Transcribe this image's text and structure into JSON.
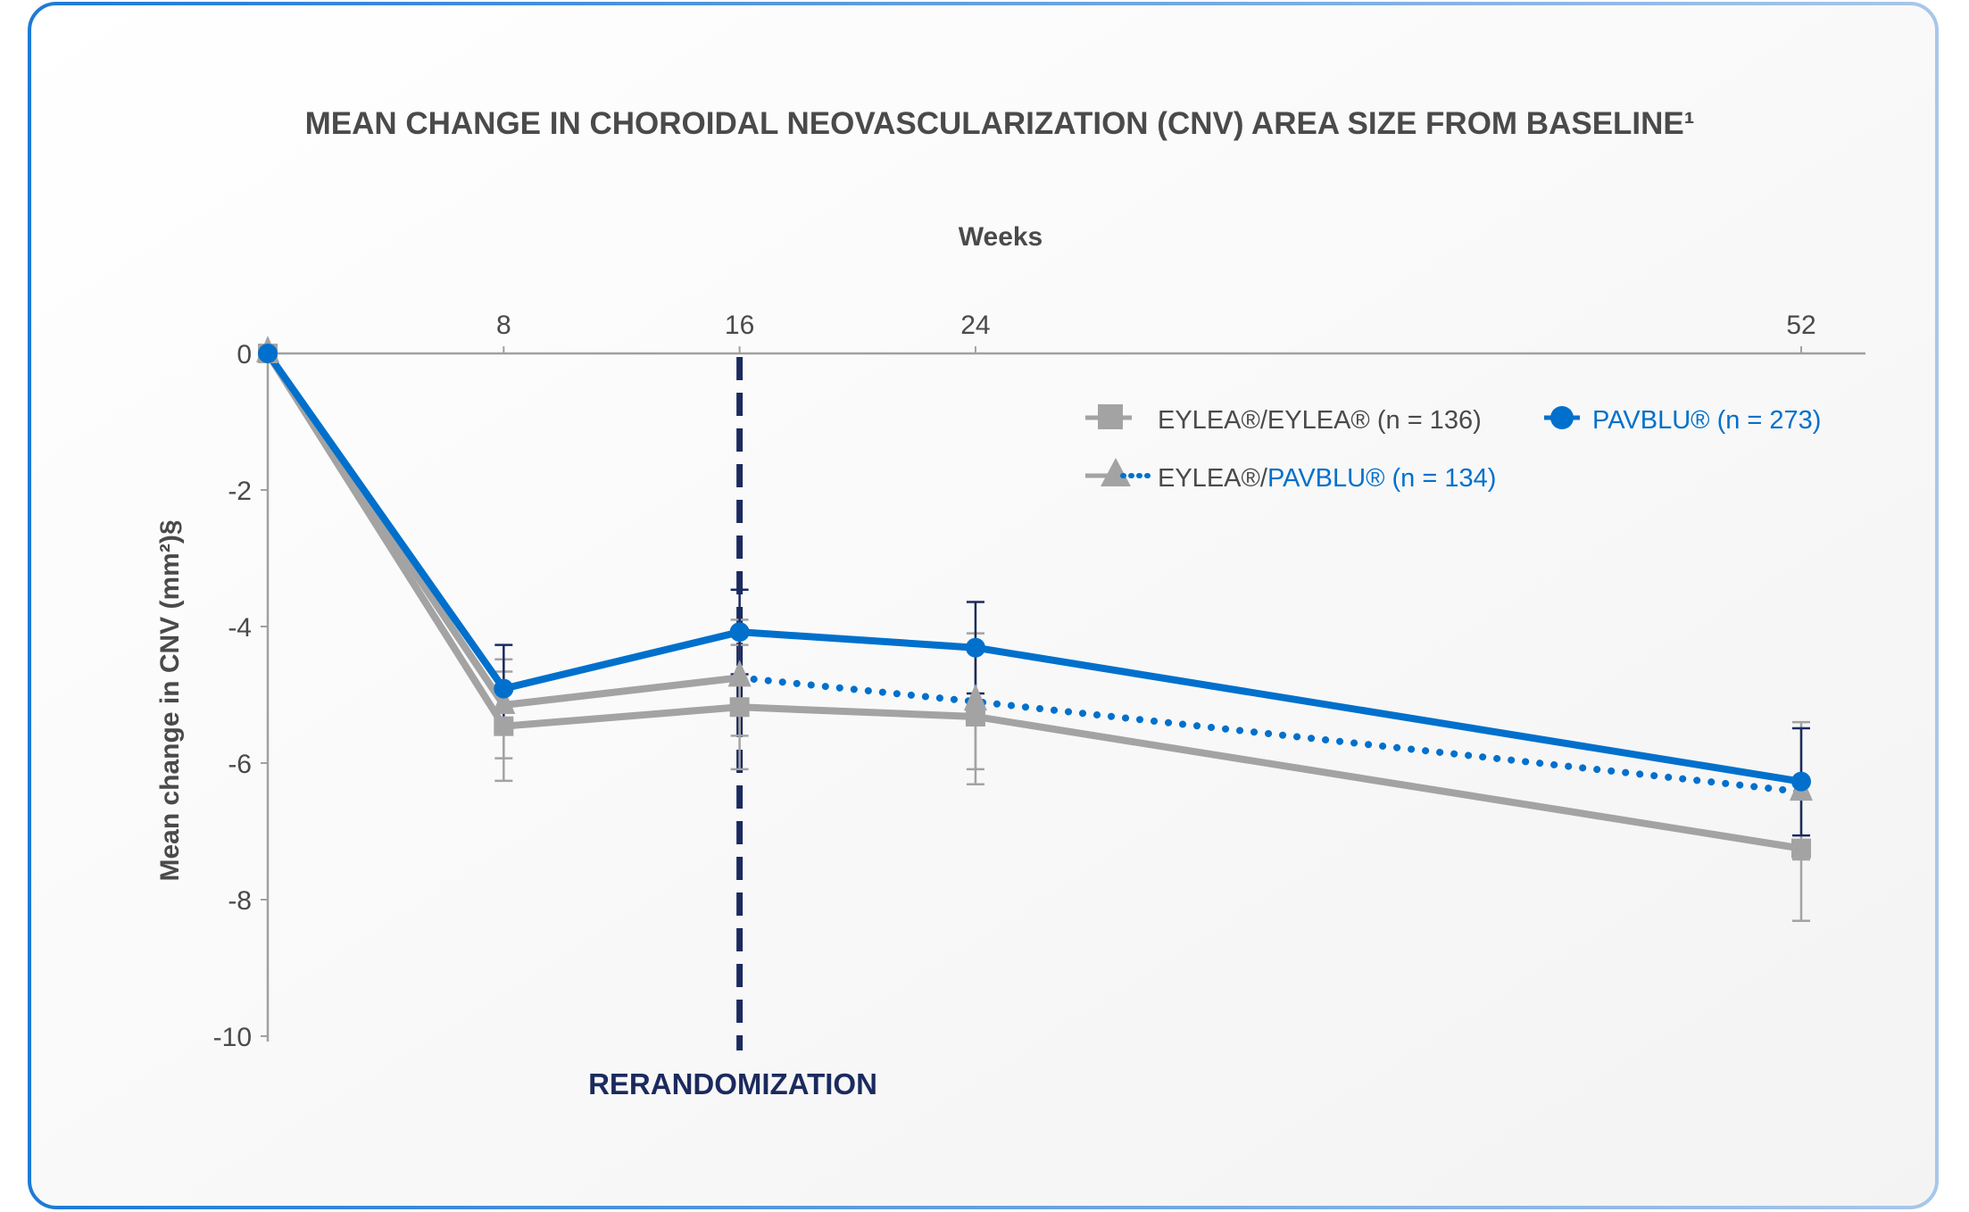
{
  "colors": {
    "pavblu": "#0070cc",
    "eylea": "#a3a3a3",
    "rerandomization": "#1b2a5e",
    "text": "#4a4a4a",
    "axis": "#a0a0a0",
    "border": "#1f7ad6"
  },
  "chart_data": {
    "type": "line",
    "title": "MEAN CHANGE IN CHOROIDAL NEOVASCULARIZATION (CNV) AREA SIZE FROM BASELINE¹",
    "xlabel": "Weeks",
    "ylabel": "Mean change in CNV (mm²)§",
    "x": [
      0,
      8,
      16,
      24,
      52
    ],
    "xticks": [
      "8",
      "16",
      "24",
      "52"
    ],
    "xtick_values": [
      8,
      16,
      24,
      52
    ],
    "xlim": [
      0,
      56
    ],
    "ylim": [
      -10,
      0
    ],
    "yticks": [
      "0",
      "-2",
      "-4",
      "-6",
      "-8",
      "-10"
    ],
    "ytick_values": [
      0,
      -2,
      -4,
      -6,
      -8,
      -10
    ],
    "grid": false,
    "legend_placement": "top-right",
    "annotation": {
      "label": "RERANDOMIZATION",
      "x": 16
    },
    "series": [
      {
        "name": "EYLEA®/EYLEA® (n = 136)",
        "legend_parts": [
          "EYLEA®/EYLEA® (n = 136)"
        ],
        "marker": "square",
        "style": "solid",
        "color": "#a3a3a3",
        "values": [
          0,
          -5.46,
          -5.18,
          -5.32,
          -7.25
        ],
        "error_low": [
          null,
          -6.26,
          -6.09,
          -6.31,
          -8.31
        ],
        "error_high": [
          null,
          -4.66,
          -4.27,
          -4.33,
          -7.41
        ]
      },
      {
        "name": "EYLEA®/PAVBLU® (n = 134)",
        "legend_parts": [
          "EYLEA®/",
          "PAVBLU® (n = 134)"
        ],
        "marker": "triangle",
        "style": "dotted-after-16",
        "color": "#a3a3a3",
        "values": [
          0,
          -5.15,
          -4.75,
          -5.1,
          -6.42
        ],
        "error_low": [
          null,
          -5.93,
          -5.6,
          -6.09,
          -7.41
        ],
        "error_high": [
          null,
          -4.48,
          -3.9,
          -4.1,
          -5.4
        ]
      },
      {
        "name": "PAVBLU® (n = 273)",
        "legend_parts": [
          "PAVBLU® (n = 273)"
        ],
        "marker": "circle",
        "style": "solid",
        "color": "#0070cc",
        "values": [
          0,
          -4.91,
          -4.08,
          -4.31,
          -6.27
        ],
        "error_low": [
          null,
          -5.55,
          -4.7,
          -4.98,
          -7.06
        ],
        "error_high": [
          null,
          -4.27,
          -3.46,
          -3.64,
          -5.49
        ]
      }
    ]
  }
}
